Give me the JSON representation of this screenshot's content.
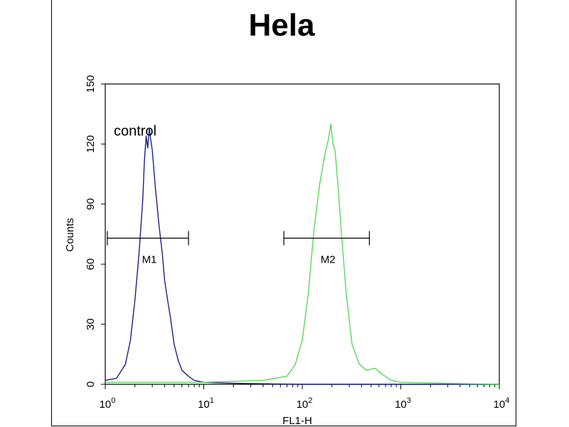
{
  "chart_data": {
    "type": "histogram",
    "title": "Hela",
    "xlabel": "FL1-H",
    "ylabel": "Counts",
    "x_scale": "log",
    "xlim": [
      1,
      10000
    ],
    "ylim": [
      0,
      150
    ],
    "x_ticks": [
      {
        "value": 1,
        "base": "10",
        "exp": "0"
      },
      {
        "value": 10,
        "base": "10",
        "exp": "1"
      },
      {
        "value": 100,
        "base": "10",
        "exp": "2"
      },
      {
        "value": 1000,
        "base": "10",
        "exp": "3"
      },
      {
        "value": 10000,
        "base": "10",
        "exp": "4"
      }
    ],
    "y_ticks": [
      0,
      30,
      60,
      90,
      120,
      150
    ],
    "grid": false,
    "series": [
      {
        "name": "control",
        "color": "#1a237e",
        "points": [
          [
            1.0,
            2
          ],
          [
            1.3,
            3
          ],
          [
            1.6,
            10
          ],
          [
            1.8,
            22
          ],
          [
            2.0,
            42
          ],
          [
            2.2,
            65
          ],
          [
            2.4,
            92
          ],
          [
            2.5,
            112
          ],
          [
            2.6,
            124
          ],
          [
            2.7,
            118
          ],
          [
            2.8,
            128
          ],
          [
            2.9,
            122
          ],
          [
            3.0,
            117
          ],
          [
            3.2,
            100
          ],
          [
            3.5,
            80
          ],
          [
            3.8,
            65
          ],
          [
            4.0,
            52
          ],
          [
            4.3,
            42
          ],
          [
            4.6,
            33
          ],
          [
            5.0,
            20
          ],
          [
            5.5,
            12
          ],
          [
            6.0,
            7
          ],
          [
            7.0,
            4
          ],
          [
            8.0,
            2
          ],
          [
            10.0,
            1
          ],
          [
            20.0,
            0.5
          ],
          [
            50.0,
            0.2
          ],
          [
            100.0,
            0
          ],
          [
            10000,
            0
          ]
        ]
      },
      {
        "name": "",
        "color": "#5cd65c",
        "points": [
          [
            1.0,
            1
          ],
          [
            10.0,
            1
          ],
          [
            40.0,
            2
          ],
          [
            70.0,
            4
          ],
          [
            85.0,
            10
          ],
          [
            100.0,
            22
          ],
          [
            115.0,
            45
          ],
          [
            130.0,
            75
          ],
          [
            150.0,
            100
          ],
          [
            170.0,
            115
          ],
          [
            185.0,
            123
          ],
          [
            195.0,
            130
          ],
          [
            205.0,
            120
          ],
          [
            215.0,
            117
          ],
          [
            230.0,
            100
          ],
          [
            250.0,
            75
          ],
          [
            280.0,
            45
          ],
          [
            320.0,
            20
          ],
          [
            380.0,
            10
          ],
          [
            450.0,
            7
          ],
          [
            550.0,
            8
          ],
          [
            650.0,
            5
          ],
          [
            800.0,
            2
          ],
          [
            1000.0,
            1
          ],
          [
            10000,
            0
          ]
        ]
      }
    ],
    "annotations": [
      {
        "text": "control",
        "x": 1.2,
        "y": 126
      },
      {
        "text": "M1",
        "x_range": [
          1.05,
          7.0
        ],
        "y": 73
      },
      {
        "text": "M2",
        "x_range": [
          65.0,
          480.0
        ],
        "y": 73
      }
    ]
  }
}
